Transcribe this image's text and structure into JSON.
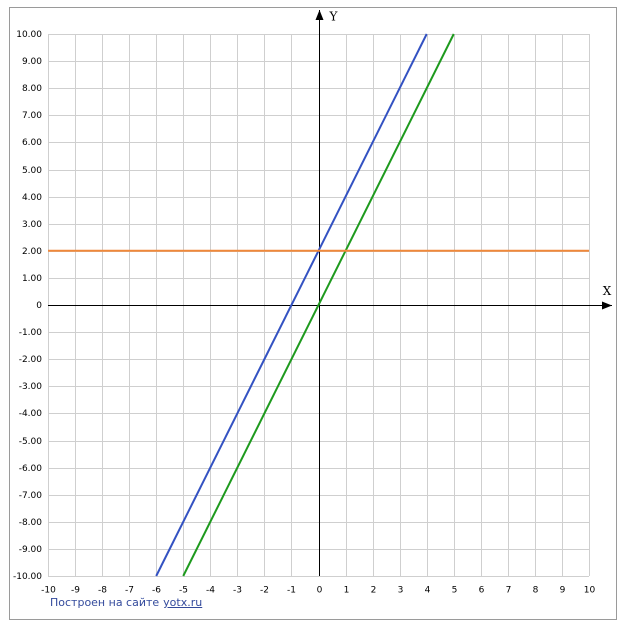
{
  "chart_data": {
    "type": "line",
    "xlabel": "X",
    "ylabel": "Y",
    "xlim": [
      -10,
      10
    ],
    "ylim": [
      -10,
      10
    ],
    "xticks": [
      -10,
      -9,
      -8,
      -7,
      -6,
      -5,
      -4,
      -3,
      -2,
      -1,
      0,
      1,
      2,
      3,
      4,
      5,
      6,
      7,
      8,
      9,
      10
    ],
    "yticks": [
      {
        "value": 10,
        "label": "10.00"
      },
      {
        "value": 9,
        "label": "9.00"
      },
      {
        "value": 8,
        "label": "8.00"
      },
      {
        "value": 7,
        "label": "7.00"
      },
      {
        "value": 6,
        "label": "6.00"
      },
      {
        "value": 5,
        "label": "5.00"
      },
      {
        "value": 4,
        "label": "4.00"
      },
      {
        "value": 3,
        "label": "3.00"
      },
      {
        "value": 2,
        "label": "2.00"
      },
      {
        "value": 1,
        "label": "1.00"
      },
      0,
      {
        "value": -1,
        "label": "-1.00"
      },
      {
        "value": -2,
        "label": "-2.00"
      },
      {
        "value": -3,
        "label": "-3.00"
      },
      {
        "value": -4,
        "label": "-4.00"
      },
      {
        "value": -5,
        "label": "-5.00"
      },
      {
        "value": -6,
        "label": "-6.00"
      },
      {
        "value": -7,
        "label": "-7.00"
      },
      {
        "value": -8,
        "label": "-8.00"
      },
      {
        "value": -9,
        "label": "-9.00"
      },
      {
        "value": -10,
        "label": "-10.00"
      }
    ],
    "grid": true,
    "series": [
      {
        "color": "#3352c2",
        "x": [
          -6,
          4
        ],
        "values": [
          -10,
          10
        ]
      },
      {
        "color": "#1e9a1e",
        "x": [
          -5,
          5
        ],
        "values": [
          -10,
          10
        ]
      },
      {
        "color": "#f0883a",
        "x": [
          -10,
          10
        ],
        "values": [
          2,
          2
        ]
      }
    ]
  },
  "footer": {
    "text": "Построен на сайте",
    "link": "yotx.ru"
  }
}
